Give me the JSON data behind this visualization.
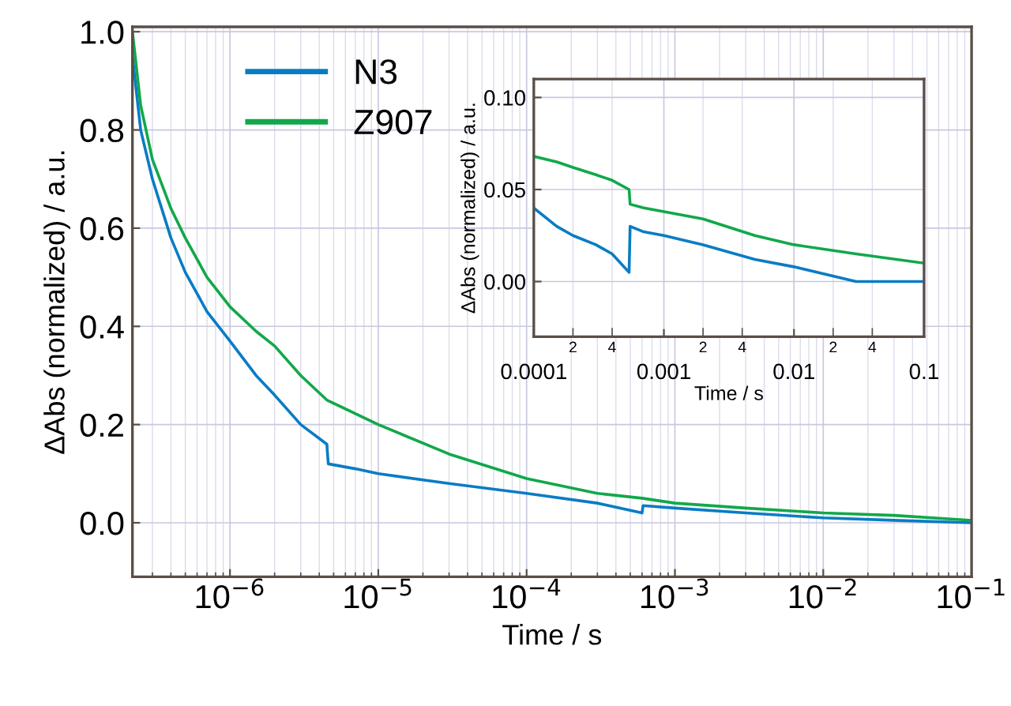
{
  "chart_data": [
    {
      "type": "line",
      "xlabel": "Time / s",
      "ylabel": "ΔAbs (normalized) / a.u.",
      "log": "x",
      "grid": true,
      "legend": "top left",
      "xlim": [
        2.2e-07,
        0.1
      ],
      "ylim": [
        -0.11,
        1.01
      ],
      "xticks": [
        {
          "value": 1e-06,
          "label": "10$^{−6}$"
        },
        {
          "value": 1e-05,
          "label": "10$^{−5}$"
        },
        {
          "value": 0.0001,
          "label": "10$^{−4}$"
        },
        {
          "value": 0.001,
          "label": "10$^{−3}$"
        },
        {
          "value": 0.01,
          "label": "10$^{−2}$"
        },
        {
          "value": 0.1,
          "label": "10$^{−1}$"
        }
      ],
      "yticks": [
        {
          "value": 0,
          "label": "0.0"
        },
        {
          "value": 0.2,
          "label": "0.2"
        },
        {
          "value": 0.4,
          "label": "0.4"
        },
        {
          "value": 0.6,
          "label": "0.6"
        },
        {
          "value": 0.8,
          "label": "0.8"
        },
        {
          "value": 1,
          "label": "1.0"
        }
      ],
      "series": [
        {
          "name": "N3",
          "color": "#0a7cc4",
          "x": [
            2.2e-07,
            2.5e-07,
            3e-07,
            4e-07,
            5e-07,
            7e-07,
            1e-06,
            1.5e-06,
            2e-06,
            3e-06,
            4.5e-06,
            4.6e-06,
            7e-06,
            1e-05,
            3e-05,
            0.0001,
            0.0003,
            0.0006,
            0.00061,
            0.001,
            0.003,
            0.01,
            0.03,
            0.1
          ],
          "values": [
            0.95,
            0.8,
            0.7,
            0.58,
            0.51,
            0.43,
            0.37,
            0.3,
            0.26,
            0.2,
            0.16,
            0.12,
            0.11,
            0.1,
            0.08,
            0.06,
            0.04,
            0.02,
            0.035,
            0.03,
            0.02,
            0.01,
            0.005,
            0.0
          ]
        },
        {
          "name": "Z907",
          "color": "#12a84a",
          "x": [
            2.2e-07,
            2.5e-07,
            3e-07,
            4e-07,
            5e-07,
            7e-07,
            1e-06,
            1.5e-06,
            2e-06,
            3e-06,
            4.5e-06,
            1e-05,
            3e-05,
            0.0001,
            0.0003,
            0.0006,
            0.001,
            0.003,
            0.01,
            0.03,
            0.1
          ],
          "values": [
            1.0,
            0.85,
            0.74,
            0.64,
            0.58,
            0.5,
            0.44,
            0.39,
            0.36,
            0.3,
            0.25,
            0.2,
            0.14,
            0.09,
            0.06,
            0.05,
            0.04,
            0.03,
            0.02,
            0.015,
            0.005
          ]
        }
      ]
    },
    {
      "type": "line",
      "xlabel": "Time / s",
      "ylabel": "ΔAbs (normalized) / a.u.",
      "log": "x",
      "grid": true,
      "xlim": [
        0.0001,
        0.1
      ],
      "ylim": [
        -0.03,
        0.11
      ],
      "xticks": [
        {
          "value": 0.0001,
          "label": "0.0001"
        },
        {
          "value": 0.0002,
          "label": null
        },
        {
          "value": 0.0004,
          "label": null
        },
        {
          "value": 0.001,
          "label": "0.001"
        },
        {
          "value": 0.002,
          "label": null
        },
        {
          "value": 0.004,
          "label": null
        },
        {
          "value": 0.01,
          "label": "0.01"
        },
        {
          "value": 0.02,
          "label": null
        },
        {
          "value": 0.04,
          "label": null
        },
        {
          "value": 0.1,
          "label": "0.1"
        }
      ],
      "annotations": [
        "2",
        "4",
        "2",
        "4",
        "2",
        "4"
      ],
      "yticks": [
        {
          "value": 0,
          "label": "0.00"
        },
        {
          "value": 0.05,
          "label": "0.05"
        },
        {
          "value": 0.1,
          "label": "0.10"
        }
      ],
      "series": [
        {
          "color": "#0a7cc4",
          "x": [
            0.0001,
            0.00015,
            0.0002,
            0.0003,
            0.0004,
            0.00054,
            0.00055,
            0.0007,
            0.001,
            0.002,
            0.005,
            0.01,
            0.03,
            0.1
          ],
          "values": [
            0.04,
            0.03,
            0.025,
            0.02,
            0.015,
            0.005,
            0.03,
            0.027,
            0.025,
            0.02,
            0.012,
            0.008,
            0.0,
            0.0
          ]
        },
        {
          "color": "#12a84a",
          "x": [
            0.0001,
            0.00015,
            0.0002,
            0.0003,
            0.0004,
            0.00054,
            0.00055,
            0.0007,
            0.001,
            0.002,
            0.005,
            0.01,
            0.03,
            0.1
          ],
          "values": [
            0.068,
            0.065,
            0.062,
            0.058,
            0.055,
            0.05,
            0.042,
            0.04,
            0.038,
            0.034,
            0.025,
            0.02,
            0.015,
            0.01
          ]
        }
      ]
    }
  ]
}
